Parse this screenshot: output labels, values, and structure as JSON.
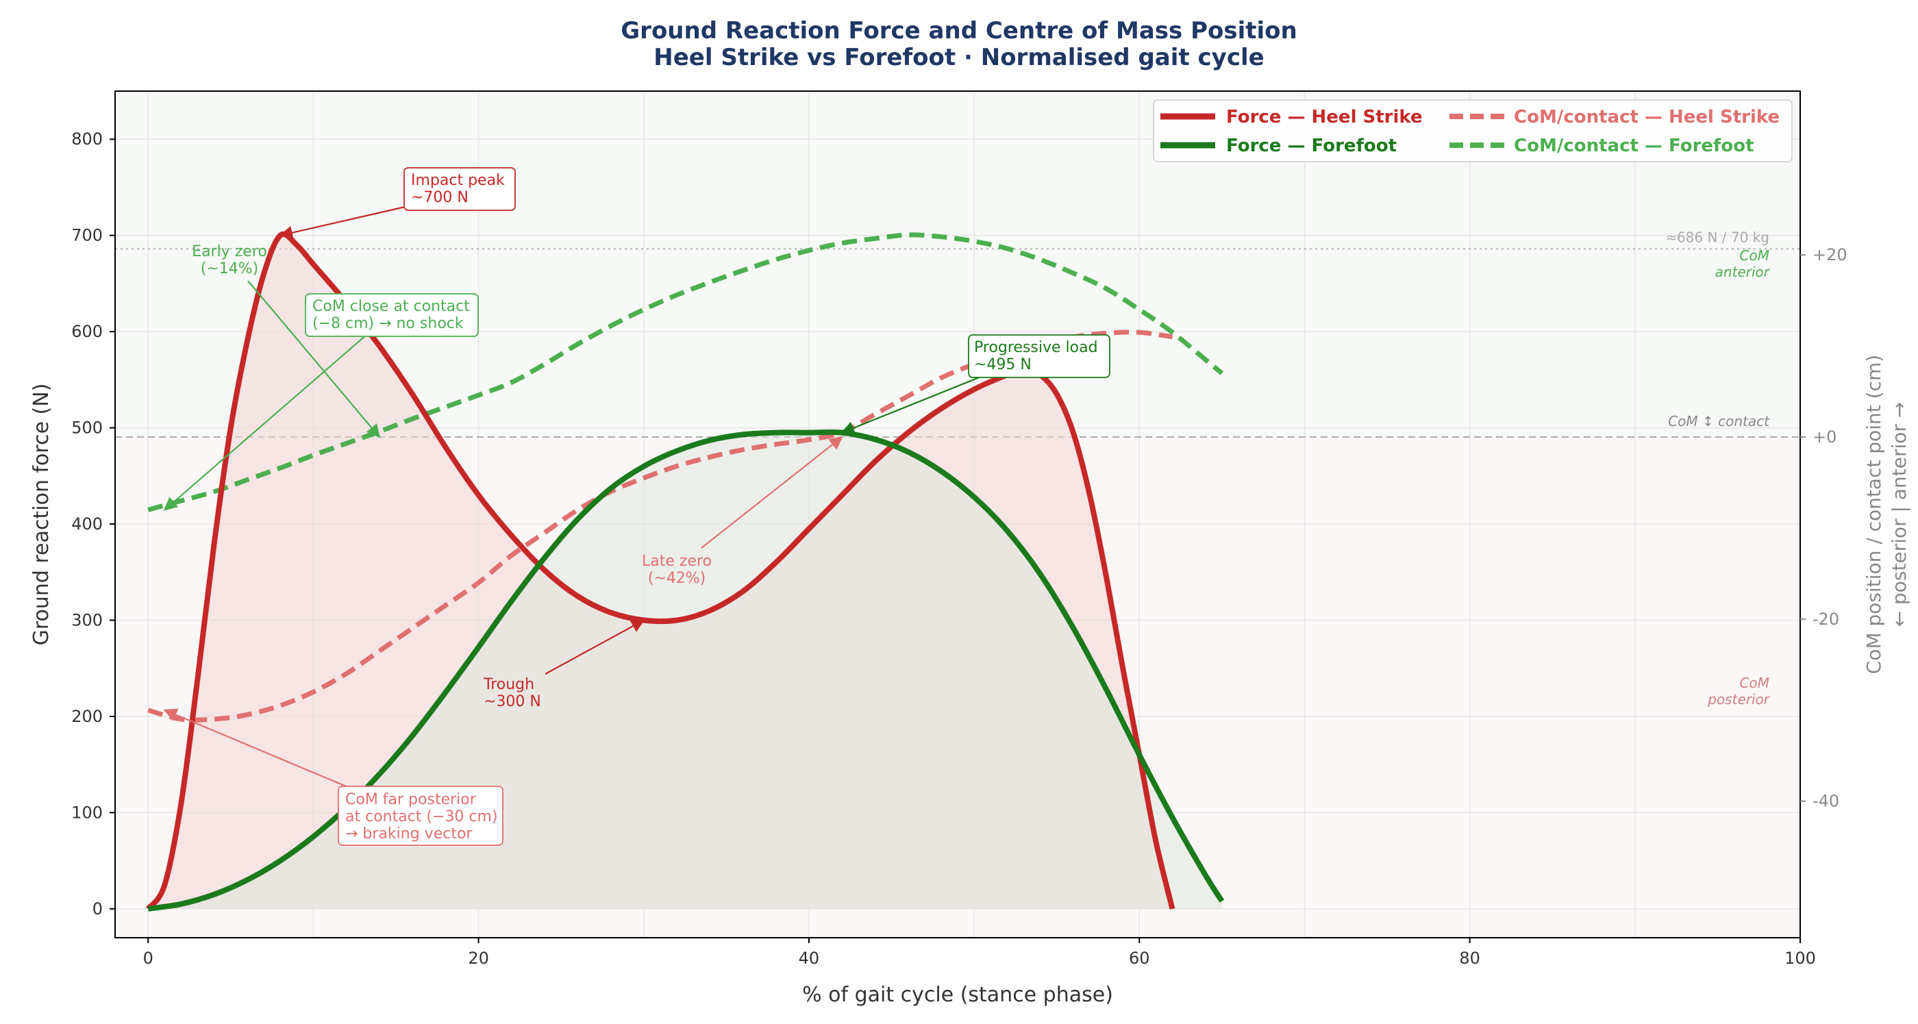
{
  "chart_data": {
    "type": "line",
    "title_line1": "Ground Reaction Force and Centre of Mass Position",
    "title_line2": "Heel Strike vs Forefoot  ·  Normalised gait cycle",
    "xlabel": "% of gait cycle (stance phase)",
    "ylabel": "Ground reaction force (N)",
    "ylabel2_line1": "CoM position / contact point (cm)",
    "ylabel2_line2": "← posterior  |  anterior →",
    "xlim": [
      -2,
      100
    ],
    "ylim": [
      -30,
      850
    ],
    "y2lim": [
      -55,
      38
    ],
    "x_ticks": [
      0,
      20,
      40,
      60,
      80,
      100
    ],
    "y_ticks": [
      0,
      100,
      200,
      300,
      400,
      500,
      600,
      700,
      800
    ],
    "y2_ticks": [
      20,
      0,
      -20,
      -40
    ],
    "y2_tick_labels": [
      "+20",
      "+0",
      "-20",
      "-40"
    ],
    "grid": true,
    "legend_placement": "top-right",
    "colors": {
      "heel": "#c62828",
      "forefoot": "#1b7a1b",
      "heel_com": "#e07070",
      "forefoot_com": "#4caf50",
      "title": "#1f3864",
      "bg_top": "#f6f9f6",
      "bg_bottom": "#fcf7f7"
    },
    "series": [
      {
        "name": "Force — Heel Strike",
        "axis": "left",
        "style": "solid",
        "color": "#c62828",
        "fill": "#f3d6d6",
        "points": [
          [
            0,
            0
          ],
          [
            1,
            25
          ],
          [
            2,
            110
          ],
          [
            3,
            240
          ],
          [
            4,
            380
          ],
          [
            5,
            500
          ],
          [
            6,
            590
          ],
          [
            7,
            660
          ],
          [
            8,
            700
          ],
          [
            9,
            690
          ],
          [
            10,
            670
          ],
          [
            12,
            630
          ],
          [
            14,
            585
          ],
          [
            16,
            535
          ],
          [
            18,
            480
          ],
          [
            20,
            430
          ],
          [
            22,
            388
          ],
          [
            24,
            352
          ],
          [
            26,
            325
          ],
          [
            28,
            308
          ],
          [
            30,
            300
          ],
          [
            32,
            300
          ],
          [
            34,
            310
          ],
          [
            36,
            330
          ],
          [
            38,
            360
          ],
          [
            40,
            395
          ],
          [
            42,
            430
          ],
          [
            44,
            465
          ],
          [
            46,
            495
          ],
          [
            48,
            520
          ],
          [
            50,
            540
          ],
          [
            52,
            555
          ],
          [
            53,
            560
          ],
          [
            54,
            555
          ],
          [
            55,
            535
          ],
          [
            56,
            495
          ],
          [
            57,
            430
          ],
          [
            58,
            345
          ],
          [
            59,
            250
          ],
          [
            60,
            160
          ],
          [
            61,
            70
          ],
          [
            62,
            0
          ]
        ]
      },
      {
        "name": "Force — Forefoot",
        "axis": "left",
        "style": "solid",
        "color": "#1b7a1b",
        "fill": "#dfe7de",
        "points": [
          [
            0,
            0
          ],
          [
            2,
            5
          ],
          [
            4,
            15
          ],
          [
            6,
            30
          ],
          [
            8,
            50
          ],
          [
            10,
            75
          ],
          [
            12,
            105
          ],
          [
            14,
            140
          ],
          [
            16,
            180
          ],
          [
            18,
            225
          ],
          [
            20,
            272
          ],
          [
            22,
            320
          ],
          [
            24,
            365
          ],
          [
            26,
            405
          ],
          [
            28,
            437
          ],
          [
            30,
            460
          ],
          [
            32,
            476
          ],
          [
            34,
            487
          ],
          [
            36,
            493
          ],
          [
            38,
            495
          ],
          [
            40,
            495
          ],
          [
            42,
            495
          ],
          [
            44,
            488
          ],
          [
            46,
            475
          ],
          [
            48,
            455
          ],
          [
            50,
            428
          ],
          [
            52,
            393
          ],
          [
            54,
            348
          ],
          [
            56,
            292
          ],
          [
            58,
            228
          ],
          [
            60,
            160
          ],
          [
            62,
            95
          ],
          [
            64,
            35
          ],
          [
            65,
            8
          ]
        ]
      },
      {
        "name": "CoM/contact — Heel Strike",
        "axis": "right",
        "style": "dashed",
        "color": "#e07070",
        "points": [
          [
            0,
            -30
          ],
          [
            2,
            -31
          ],
          [
            4,
            -31
          ],
          [
            6,
            -30.5
          ],
          [
            8,
            -29.5
          ],
          [
            10,
            -28
          ],
          [
            12,
            -26
          ],
          [
            14,
            -23.5
          ],
          [
            16,
            -21
          ],
          [
            18,
            -18.5
          ],
          [
            20,
            -16
          ],
          [
            22,
            -13
          ],
          [
            24,
            -10.5
          ],
          [
            26,
            -8
          ],
          [
            28,
            -6
          ],
          [
            30,
            -4.5
          ],
          [
            32,
            -3.2
          ],
          [
            34,
            -2.2
          ],
          [
            36,
            -1.4
          ],
          [
            38,
            -0.8
          ],
          [
            40,
            -0.3
          ],
          [
            42,
            0.5
          ],
          [
            44,
            2.5
          ],
          [
            46,
            4.5
          ],
          [
            48,
            6.5
          ],
          [
            50,
            8
          ],
          [
            52,
            9.2
          ],
          [
            54,
            10.2
          ],
          [
            56,
            11
          ],
          [
            58,
            11.4
          ],
          [
            60,
            11.5
          ],
          [
            62,
            11
          ]
        ]
      },
      {
        "name": "CoM/contact — Forefoot",
        "axis": "right",
        "style": "dashed",
        "color": "#4caf50",
        "points": [
          [
            0,
            -8
          ],
          [
            2,
            -7
          ],
          [
            4,
            -6
          ],
          [
            6,
            -4.7
          ],
          [
            8,
            -3.4
          ],
          [
            10,
            -2
          ],
          [
            12,
            -0.7
          ],
          [
            14,
            0.6
          ],
          [
            16,
            2
          ],
          [
            18,
            3.3
          ],
          [
            20,
            4.6
          ],
          [
            22,
            6
          ],
          [
            24,
            8
          ],
          [
            26,
            10.2
          ],
          [
            28,
            12.2
          ],
          [
            30,
            14
          ],
          [
            32,
            15.6
          ],
          [
            34,
            17
          ],
          [
            36,
            18.3
          ],
          [
            38,
            19.5
          ],
          [
            40,
            20.5
          ],
          [
            42,
            21.3
          ],
          [
            44,
            21.8
          ],
          [
            46,
            22.2
          ],
          [
            48,
            22
          ],
          [
            50,
            21.5
          ],
          [
            52,
            20.7
          ],
          [
            54,
            19.5
          ],
          [
            56,
            18
          ],
          [
            58,
            16.3
          ],
          [
            60,
            14
          ],
          [
            62,
            11.5
          ],
          [
            64,
            8.5
          ],
          [
            65,
            7
          ]
        ]
      }
    ],
    "reference_lines": {
      "bodyweight": {
        "value": 686,
        "label": "≈686 N / 70 kg"
      },
      "com_zero": {
        "value": 0,
        "label": "CoM ↕ contact"
      }
    },
    "region_labels": {
      "anterior_line1": "CoM",
      "anterior_line2": "anterior",
      "posterior_line1": "CoM",
      "posterior_line2": "posterior"
    },
    "annotations": [
      {
        "id": "impact",
        "lines": [
          "Impact peak",
          "~700 N"
        ],
        "point": [
          8,
          700
        ],
        "axis": "left",
        "boxed": true,
        "color": "#c62828"
      },
      {
        "id": "early-zero",
        "lines": [
          "Early zero",
          "(~14%)"
        ],
        "point": [
          14,
          0
        ],
        "axis": "right",
        "boxed": false,
        "color": "#4caf50"
      },
      {
        "id": "com-close",
        "lines": [
          "CoM close at contact",
          "(−8 cm) → no shock"
        ],
        "point": [
          1,
          -8
        ],
        "axis": "right",
        "boxed": true,
        "color": "#4caf50"
      },
      {
        "id": "progressive",
        "lines": [
          "Progressive load",
          "~495 N"
        ],
        "point": [
          42,
          495
        ],
        "axis": "left",
        "boxed": true,
        "color": "#1b7a1b"
      },
      {
        "id": "late-zero",
        "lines": [
          "Late zero",
          "(~42%)"
        ],
        "point": [
          42,
          0
        ],
        "axis": "right",
        "boxed": false,
        "color": "#e07070"
      },
      {
        "id": "trough",
        "lines": [
          "Trough",
          "~300 N"
        ],
        "point": [
          30,
          300
        ],
        "axis": "left",
        "boxed": false,
        "color": "#c62828"
      },
      {
        "id": "com-far",
        "lines": [
          "CoM far posterior",
          "at contact (−30 cm)",
          "→ braking vector"
        ],
        "point": [
          1,
          -30
        ],
        "axis": "right",
        "boxed": true,
        "color": "#e07070"
      }
    ]
  }
}
